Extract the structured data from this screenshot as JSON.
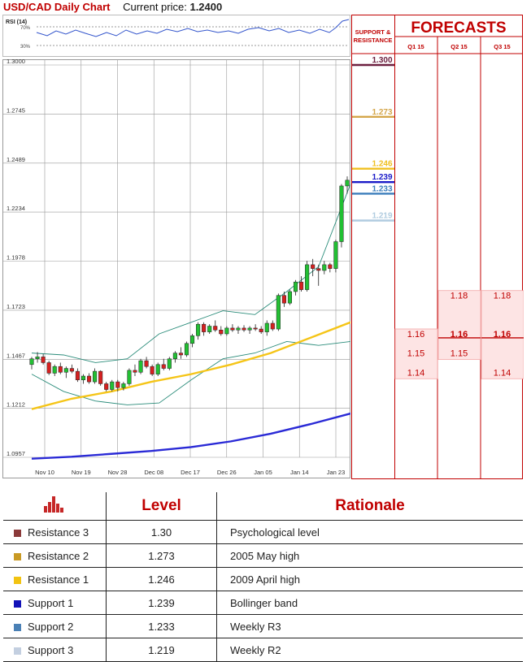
{
  "header": {
    "pair_title": "USD/CAD Daily Chart",
    "price_label": "Current price:",
    "price_value": "1.2400"
  },
  "rsi": {
    "label": "RSI (14)",
    "levels": [
      "70%",
      "30%"
    ]
  },
  "sr_header": {
    "line1": "SUPPORT &",
    "line2": "RESISTANCE"
  },
  "forecast_header": "FORECASTS",
  "chart_data": {
    "type": "candlestick",
    "title": "USD/CAD Daily Chart",
    "ylim": [
      1.0957,
      1.3
    ],
    "y_ticks": [
      "1.3000",
      "1.2745",
      "1.2489",
      "1.2234",
      "1.1978",
      "1.1723",
      "1.1467",
      "1.1212",
      "1.0957"
    ],
    "x_ticks": [
      "Nov 10",
      "Nov 19",
      "Nov 28",
      "Dec 08",
      "Dec 17",
      "Dec 26",
      "Jan 05",
      "Jan 14",
      "Jan 23"
    ],
    "candles": [
      [
        1.144,
        1.148,
        1.1415,
        1.147
      ],
      [
        1.147,
        1.1505,
        1.145,
        1.148
      ],
      [
        1.148,
        1.1495,
        1.144,
        1.145
      ],
      [
        1.145,
        1.146,
        1.1385,
        1.1395
      ],
      [
        1.1395,
        1.144,
        1.138,
        1.143
      ],
      [
        1.143,
        1.145,
        1.139,
        1.14
      ],
      [
        1.14,
        1.143,
        1.137,
        1.142
      ],
      [
        1.142,
        1.144,
        1.1395,
        1.1405
      ],
      [
        1.1405,
        1.142,
        1.135,
        1.136
      ],
      [
        1.136,
        1.139,
        1.134,
        1.138
      ],
      [
        1.138,
        1.1395,
        1.134,
        1.135
      ],
      [
        1.135,
        1.142,
        1.134,
        1.1405
      ],
      [
        1.1405,
        1.141,
        1.133,
        1.134
      ],
      [
        1.134,
        1.135,
        1.13,
        1.131
      ],
      [
        1.131,
        1.136,
        1.13,
        1.135
      ],
      [
        1.135,
        1.136,
        1.13,
        1.132
      ],
      [
        1.132,
        1.135,
        1.1305,
        1.134
      ],
      [
        1.134,
        1.142,
        1.133,
        1.141
      ],
      [
        1.141,
        1.144,
        1.138,
        1.14
      ],
      [
        1.14,
        1.147,
        1.139,
        1.146
      ],
      [
        1.146,
        1.148,
        1.142,
        1.143
      ],
      [
        1.143,
        1.144,
        1.138,
        1.139
      ],
      [
        1.139,
        1.145,
        1.138,
        1.144
      ],
      [
        1.144,
        1.147,
        1.141,
        1.142
      ],
      [
        1.142,
        1.148,
        1.141,
        1.147
      ],
      [
        1.147,
        1.151,
        1.145,
        1.15
      ],
      [
        1.15,
        1.153,
        1.147,
        1.149
      ],
      [
        1.149,
        1.156,
        1.148,
        1.155
      ],
      [
        1.155,
        1.16,
        1.153,
        1.159
      ],
      [
        1.159,
        1.166,
        1.157,
        1.165
      ],
      [
        1.165,
        1.166,
        1.159,
        1.161
      ],
      [
        1.161,
        1.165,
        1.16,
        1.164
      ],
      [
        1.164,
        1.167,
        1.161,
        1.162
      ],
      [
        1.162,
        1.164,
        1.159,
        1.16
      ],
      [
        1.16,
        1.164,
        1.159,
        1.163
      ],
      [
        1.163,
        1.165,
        1.161,
        1.162
      ],
      [
        1.162,
        1.164,
        1.16,
        1.163
      ],
      [
        1.163,
        1.1645,
        1.161,
        1.162
      ],
      [
        1.162,
        1.164,
        1.16,
        1.163
      ],
      [
        1.163,
        1.165,
        1.1615,
        1.1625
      ],
      [
        1.1625,
        1.164,
        1.16,
        1.161
      ],
      [
        1.161,
        1.167,
        1.159,
        1.1655
      ],
      [
        1.1655,
        1.167,
        1.1615,
        1.1625
      ],
      [
        1.1625,
        1.181,
        1.1615,
        1.18
      ],
      [
        1.18,
        1.182,
        1.174,
        1.176
      ],
      [
        1.176,
        1.183,
        1.175,
        1.182
      ],
      [
        1.182,
        1.188,
        1.18,
        1.187
      ],
      [
        1.187,
        1.19,
        1.182,
        1.183
      ],
      [
        1.183,
        1.198,
        1.182,
        1.196
      ],
      [
        1.196,
        1.199,
        1.19,
        1.194
      ],
      [
        1.194,
        1.196,
        1.185,
        1.193
      ],
      [
        1.193,
        1.198,
        1.191,
        1.196
      ],
      [
        1.196,
        1.197,
        1.192,
        1.194
      ],
      [
        1.194,
        1.209,
        1.192,
        1.208
      ],
      [
        1.208,
        1.238,
        1.205,
        1.237
      ],
      [
        1.237,
        1.242,
        1.233,
        1.24
      ]
    ],
    "moving_averages": [
      {
        "color": "#f5c518",
        "points": [
          1.1208,
          1.1262,
          1.13,
          1.135,
          1.139,
          1.144,
          1.15,
          1.158,
          1.166
        ]
      },
      {
        "color": "#2a2ad6",
        "points": [
          1.095,
          1.096,
          1.0975,
          1.099,
          1.101,
          1.104,
          1.108,
          1.113,
          1.1185
        ]
      }
    ],
    "bollinger": {
      "upper": [
        1.15,
        1.149,
        1.145,
        1.147,
        1.16,
        1.166,
        1.172,
        1.17,
        1.182,
        1.195,
        1.238
      ],
      "lower": [
        1.139,
        1.13,
        1.125,
        1.123,
        1.124,
        1.136,
        1.147,
        1.15,
        1.156,
        1.154,
        1.156
      ]
    }
  },
  "sr_levels": [
    {
      "label": "1.300",
      "value": 1.3,
      "color": "#6d2040"
    },
    {
      "label": "1.273",
      "value": 1.273,
      "color": "#d4a64a"
    },
    {
      "label": "1.246",
      "value": 1.246,
      "color": "#f0c020"
    },
    {
      "label": "1.239",
      "value": 1.239,
      "color": "#1a1ac8"
    },
    {
      "label": "1.233",
      "value": 1.233,
      "color": "#3b7dbb"
    },
    {
      "label": "1.219",
      "value": 1.219,
      "color": "#b0cce0"
    }
  ],
  "forecasts": {
    "columns": [
      "Q1 15",
      "Q2 15",
      "Q3 15"
    ],
    "cells": [
      {
        "col": 0,
        "label": "1.16",
        "value": 1.16,
        "bold": false
      },
      {
        "col": 0,
        "label": "1.15",
        "value": 1.15,
        "bold": false
      },
      {
        "col": 0,
        "label": "1.14",
        "value": 1.14,
        "bold": false
      },
      {
        "col": 1,
        "label": "1.18",
        "value": 1.18,
        "bold": false
      },
      {
        "col": 1,
        "label": "1.16",
        "value": 1.16,
        "bold": true
      },
      {
        "col": 1,
        "label": "1.15",
        "value": 1.15,
        "bold": false
      },
      {
        "col": 2,
        "label": "1.18",
        "value": 1.18,
        "bold": false
      },
      {
        "col": 2,
        "label": "1.16",
        "value": 1.16,
        "bold": true
      },
      {
        "col": 2,
        "label": "1.14",
        "value": 1.14,
        "bold": false
      }
    ]
  },
  "legend": {
    "header_level": "Level",
    "header_rationale": "Rationale",
    "rows": [
      {
        "name": "Resistance 3",
        "level": "1.30",
        "rationale": "Psychological level",
        "color": "#8b3a3a"
      },
      {
        "name": "Resistance 2",
        "level": "1.273",
        "rationale": "2005 May high",
        "color": "#c99a24"
      },
      {
        "name": "Resistance 1",
        "level": "1.246",
        "rationale": "2009 April high",
        "color": "#f2c311"
      },
      {
        "name": "Support 1",
        "level": "1.239",
        "rationale": "Bollinger band",
        "color": "#1212b8"
      },
      {
        "name": "Support 2",
        "level": "1.233",
        "rationale": "Weekly R3",
        "color": "#4a80b5"
      },
      {
        "name": "Support 3",
        "level": "1.219",
        "rationale": "Weekly R2",
        "color": "#c3cfe0"
      }
    ]
  }
}
